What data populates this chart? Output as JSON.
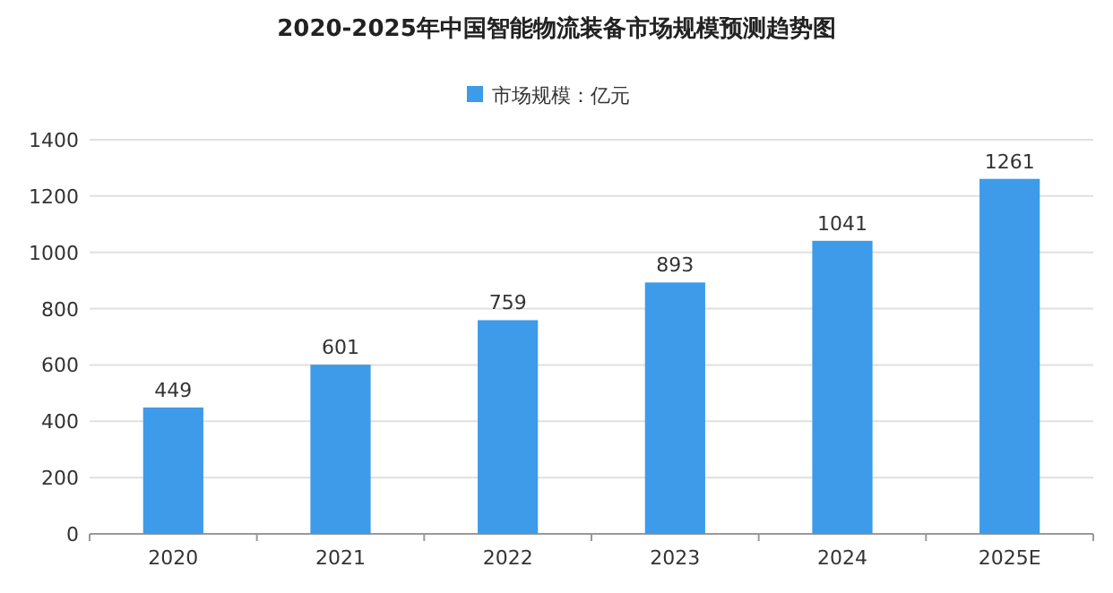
{
  "chart_data": {
    "type": "bar",
    "title": "2020-2025年中国智能物流装备市场规模预测趋势图",
    "categories": [
      "2020",
      "2021",
      "2022",
      "2023",
      "2024",
      "2025E"
    ],
    "series": [
      {
        "name": "市场规模：亿元",
        "color": "#3d9be9",
        "values": [
          449,
          601,
          759,
          893,
          1041,
          1261
        ]
      }
    ],
    "ylim": [
      0,
      1400
    ],
    "yticks": [
      0,
      200,
      400,
      600,
      800,
      1000,
      1200,
      1400
    ],
    "grid": "y",
    "legend": "top",
    "data_labels": true
  }
}
